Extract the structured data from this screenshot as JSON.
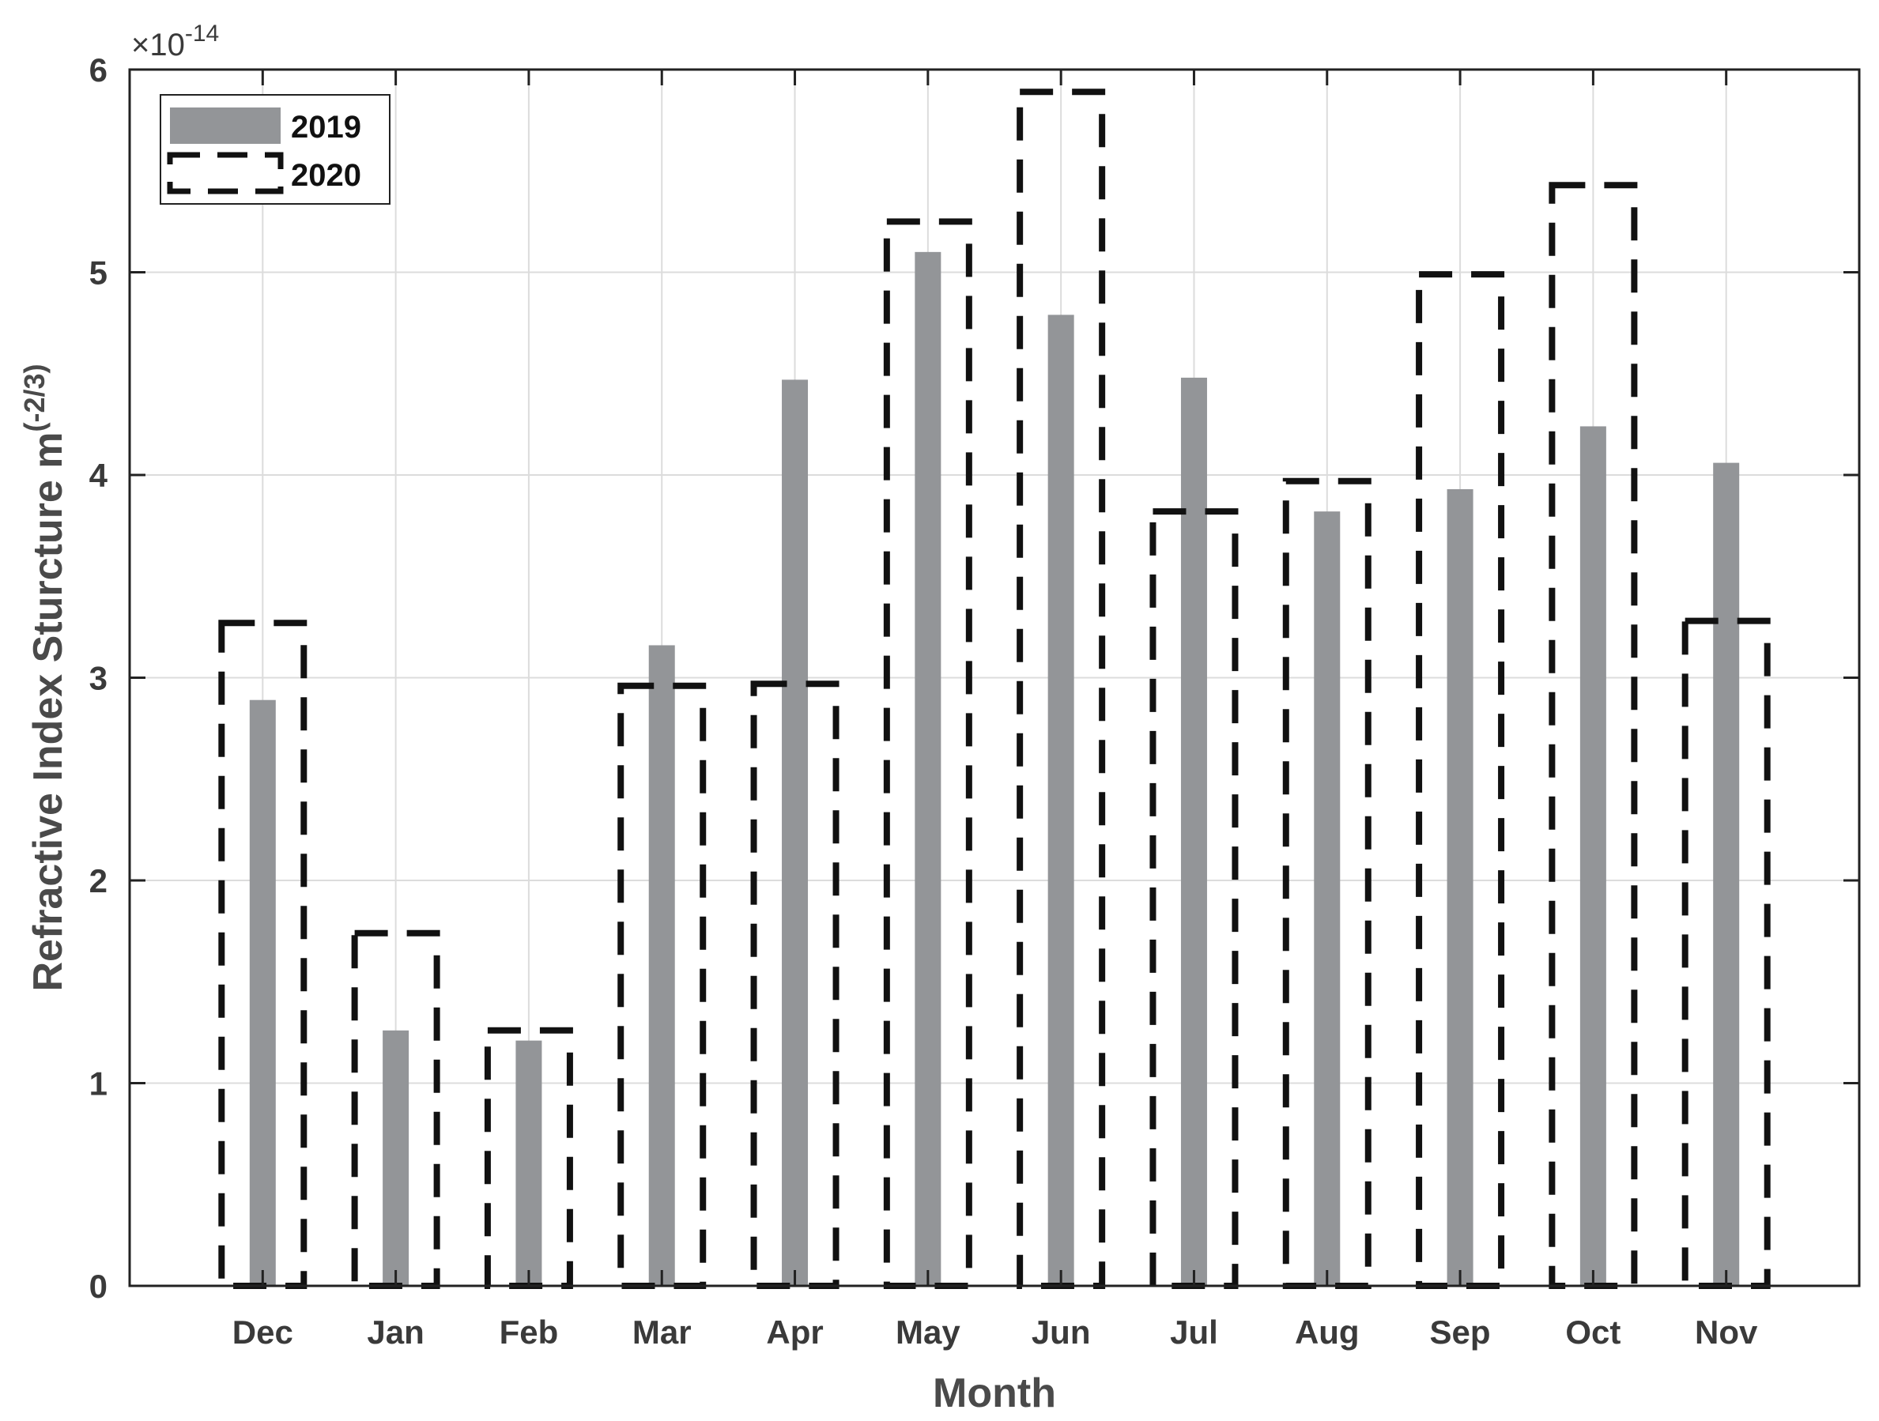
{
  "chart_data": {
    "type": "bar",
    "categories": [
      "Dec",
      "Jan",
      "Feb",
      "Mar",
      "Apr",
      "May",
      "Jun",
      "Jul",
      "Aug",
      "Sep",
      "Oct",
      "Nov"
    ],
    "series": [
      {
        "name": "2019",
        "values": [
          2.89,
          1.26,
          1.21,
          3.16,
          4.47,
          5.1,
          4.79,
          4.48,
          3.82,
          3.93,
          4.24,
          4.06
        ],
        "style": "solid",
        "color": "#939598"
      },
      {
        "name": "2020",
        "values": [
          3.27,
          1.74,
          1.26,
          2.96,
          2.97,
          5.25,
          5.89,
          3.82,
          3.97,
          4.99,
          5.43,
          3.28
        ],
        "style": "dashed-outline",
        "color": "#111111"
      }
    ],
    "xlabel": "Month",
    "ylabel": "Refractive Index Sturcture m",
    "ylabel_superscript": "(-2/3)",
    "y_multiplier_base": "×10",
    "y_multiplier_exponent": "-14",
    "ylim": [
      0,
      6
    ],
    "yticks": [
      0,
      1,
      2,
      3,
      4,
      5,
      6
    ],
    "grid": true,
    "legend_position": "top-left"
  }
}
